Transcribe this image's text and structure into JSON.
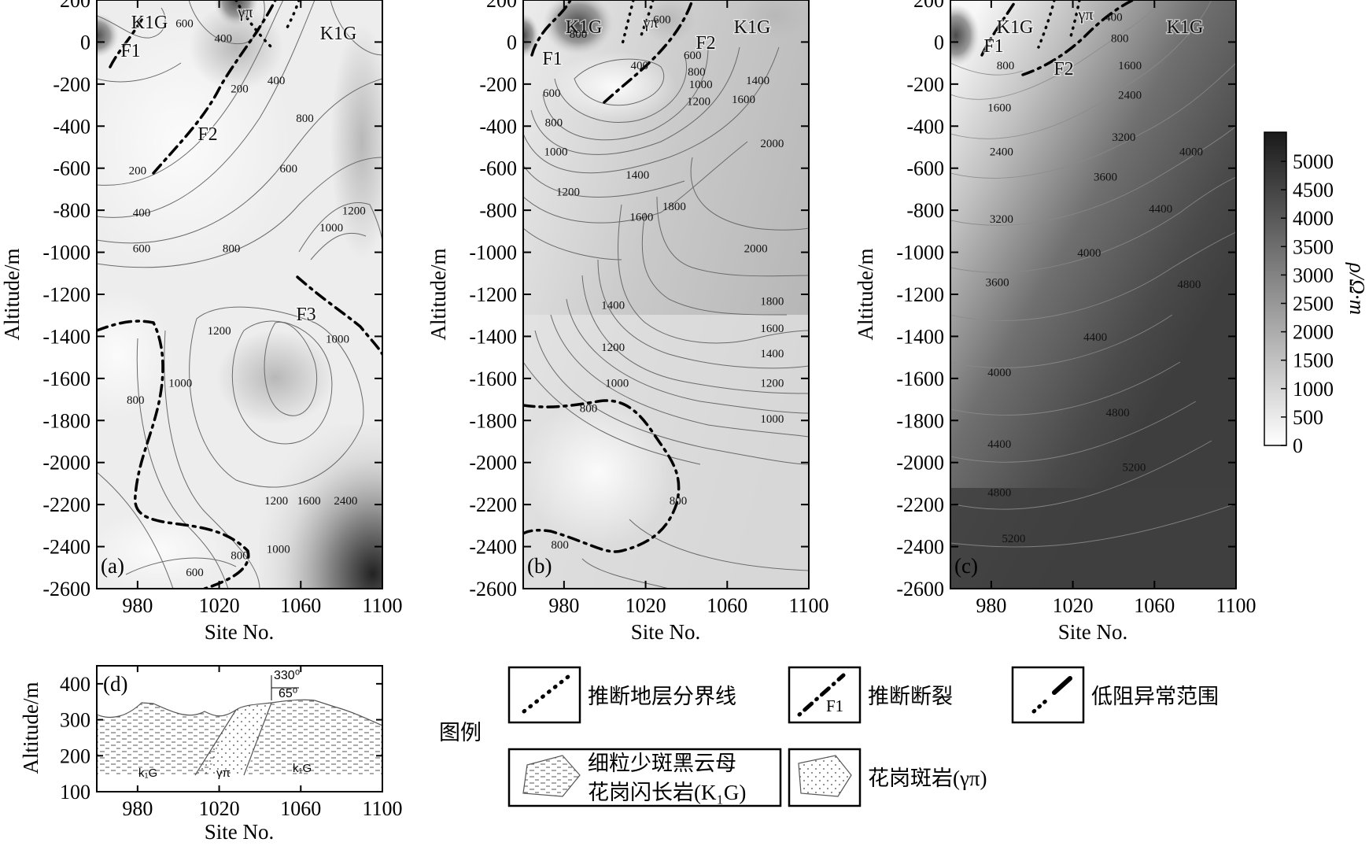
{
  "colorbar": {
    "label": "ρ/Ω·m",
    "ticks": [
      0,
      500,
      1000,
      1500,
      2000,
      2500,
      3000,
      3500,
      4000,
      4500,
      5000
    ]
  },
  "chart_data": [
    {
      "type": "contour",
      "panel_label": "(a)",
      "xlabel": "Site No.",
      "ylabel": "Altitude/m",
      "xlim": [
        960,
        1100
      ],
      "ylim": [
        -2600,
        200
      ],
      "xticks": [
        980,
        1020,
        1060,
        1100
      ],
      "yticks": [
        200,
        0,
        -200,
        -400,
        -600,
        -800,
        -1000,
        -1200,
        -1400,
        -1600,
        -1800,
        -2000,
        -2200,
        -2400,
        -2600
      ],
      "annotations": [
        "K1G",
        "K1G",
        "γπ",
        "F1",
        "F2",
        "F3"
      ],
      "contour_labels": [
        {
          "x": 1003,
          "y": 70,
          "text": "600"
        },
        {
          "x": 1022,
          "y": 0,
          "text": "400"
        },
        {
          "x": 1030,
          "y": -240,
          "text": "200"
        },
        {
          "x": 1048,
          "y": -200,
          "text": "400"
        },
        {
          "x": 1062,
          "y": -380,
          "text": "800"
        },
        {
          "x": 1054,
          "y": -620,
          "text": "600"
        },
        {
          "x": 980,
          "y": -630,
          "text": "200"
        },
        {
          "x": 982,
          "y": -830,
          "text": "400"
        },
        {
          "x": 982,
          "y": -1000,
          "text": "600"
        },
        {
          "x": 1026,
          "y": -1000,
          "text": "800"
        },
        {
          "x": 1075,
          "y": -900,
          "text": "1000"
        },
        {
          "x": 1086,
          "y": -820,
          "text": "1200"
        },
        {
          "x": 1020,
          "y": -1390,
          "text": "1200"
        },
        {
          "x": 1078,
          "y": -1430,
          "text": "1000"
        },
        {
          "x": 979,
          "y": -1720,
          "text": "800"
        },
        {
          "x": 1001,
          "y": -1640,
          "text": "1000"
        },
        {
          "x": 1048,
          "y": -2200,
          "text": "1200"
        },
        {
          "x": 1064,
          "y": -2200,
          "text": "1600"
        },
        {
          "x": 1082,
          "y": -2200,
          "text": "2400"
        },
        {
          "x": 1049,
          "y": -2430,
          "text": "1000"
        },
        {
          "x": 1030,
          "y": -2460,
          "text": "800"
        },
        {
          "x": 1008,
          "y": -2540,
          "text": "600"
        }
      ]
    },
    {
      "type": "contour",
      "panel_label": "(b)",
      "xlabel": "Site No.",
      "ylabel": "Altitude/m",
      "xlim": [
        960,
        1100
      ],
      "ylim": [
        -2600,
        200
      ],
      "xticks": [
        980,
        1020,
        1060,
        1100
      ],
      "yticks": [
        200,
        0,
        -200,
        -400,
        -600,
        -800,
        -1000,
        -1200,
        -1400,
        -1600,
        -1800,
        -2000,
        -2200,
        -2400,
        -2600
      ],
      "annotations": [
        "K1G",
        "γπ",
        "K1G",
        "F1",
        "F2"
      ],
      "contour_labels": [
        {
          "x": 1028,
          "y": 90,
          "text": "600"
        },
        {
          "x": 987,
          "y": 20,
          "text": "800"
        },
        {
          "x": 1017,
          "y": -130,
          "text": "400"
        },
        {
          "x": 1043,
          "y": -80,
          "text": "600"
        },
        {
          "x": 1045,
          "y": -160,
          "text": "800"
        },
        {
          "x": 1047,
          "y": -220,
          "text": "1000"
        },
        {
          "x": 1046,
          "y": -300,
          "text": "1200"
        },
        {
          "x": 1075,
          "y": -200,
          "text": "1400"
        },
        {
          "x": 1068,
          "y": -290,
          "text": "1600"
        },
        {
          "x": 1082,
          "y": -500,
          "text": "2000"
        },
        {
          "x": 974,
          "y": -260,
          "text": "600"
        },
        {
          "x": 975,
          "y": -400,
          "text": "800"
        },
        {
          "x": 976,
          "y": -540,
          "text": "1000"
        },
        {
          "x": 982,
          "y": -730,
          "text": "1200"
        },
        {
          "x": 1016,
          "y": -650,
          "text": "1400"
        },
        {
          "x": 1018,
          "y": -850,
          "text": "1600"
        },
        {
          "x": 1034,
          "y": -800,
          "text": "1800"
        },
        {
          "x": 1074,
          "y": -1000,
          "text": "2000"
        },
        {
          "x": 1004,
          "y": -1270,
          "text": "1400"
        },
        {
          "x": 1004,
          "y": -1470,
          "text": "1200"
        },
        {
          "x": 1006,
          "y": -1640,
          "text": "1000"
        },
        {
          "x": 1082,
          "y": -1250,
          "text": "1800"
        },
        {
          "x": 1082,
          "y": -1380,
          "text": "1600"
        },
        {
          "x": 1082,
          "y": -1500,
          "text": "1400"
        },
        {
          "x": 1082,
          "y": -1640,
          "text": "1200"
        },
        {
          "x": 1082,
          "y": -1810,
          "text": "1000"
        },
        {
          "x": 992,
          "y": -1760,
          "text": "800"
        },
        {
          "x": 1036,
          "y": -2200,
          "text": "800"
        },
        {
          "x": 978,
          "y": -2410,
          "text": "800"
        }
      ]
    },
    {
      "type": "contour",
      "panel_label": "(c)",
      "xlabel": "Site No.",
      "ylabel": "Altitude/m",
      "xlim": [
        960,
        1100
      ],
      "ylim": [
        -2600,
        200
      ],
      "xticks": [
        980,
        1020,
        1060,
        1100
      ],
      "yticks": [
        200,
        0,
        -200,
        -400,
        -600,
        -800,
        -1000,
        -1200,
        -1400,
        -1600,
        -1800,
        -2000,
        -2200,
        -2400,
        -2600
      ],
      "annotations": [
        "K1G",
        "γπ",
        "K1G",
        "F1",
        "F2"
      ],
      "contour_labels": [
        {
          "x": 1040,
          "y": 100,
          "text": "400"
        },
        {
          "x": 1043,
          "y": 0,
          "text": "800"
        },
        {
          "x": 987,
          "y": -130,
          "text": "800"
        },
        {
          "x": 1048,
          "y": -130,
          "text": "1600"
        },
        {
          "x": 1048,
          "y": -270,
          "text": "2400"
        },
        {
          "x": 984,
          "y": -330,
          "text": "1600"
        },
        {
          "x": 985,
          "y": -540,
          "text": "2400"
        },
        {
          "x": 1045,
          "y": -470,
          "text": "3200"
        },
        {
          "x": 1036,
          "y": -660,
          "text": "3600"
        },
        {
          "x": 1078,
          "y": -540,
          "text": "4000"
        },
        {
          "x": 985,
          "y": -860,
          "text": "3200"
        },
        {
          "x": 1063,
          "y": -810,
          "text": "4400"
        },
        {
          "x": 983,
          "y": -1160,
          "text": "3600"
        },
        {
          "x": 1028,
          "y": -1020,
          "text": "4000"
        },
        {
          "x": 1077,
          "y": -1170,
          "text": "4800"
        },
        {
          "x": 984,
          "y": -1590,
          "text": "4000"
        },
        {
          "x": 1031,
          "y": -1420,
          "text": "4400"
        },
        {
          "x": 1042,
          "y": -1780,
          "text": "4800"
        },
        {
          "x": 984,
          "y": -1930,
          "text": "4400"
        },
        {
          "x": 1050,
          "y": -2040,
          "text": "5200"
        },
        {
          "x": 984,
          "y": -2160,
          "text": "4800"
        },
        {
          "x": 991,
          "y": -2380,
          "text": "5200"
        }
      ]
    },
    {
      "type": "section",
      "panel_label": "(d)",
      "xlabel": "Site No.",
      "ylabel": "Altitude/m",
      "xlim": [
        960,
        1100
      ],
      "ylim": [
        100,
        450
      ],
      "xticks": [
        980,
        1020,
        1060,
        1100
      ],
      "yticks": [
        400,
        300,
        200,
        100
      ],
      "annotations": [
        "330⁰",
        "65⁰",
        "k₁G",
        "γπ",
        "k₁G"
      ]
    }
  ],
  "legend": {
    "title": "图例",
    "items": [
      {
        "symbol": "dotted-line",
        "label": "推断地层分界线"
      },
      {
        "symbol": "dash-dot-line",
        "symbol_text": "F1",
        "label": "推断断裂"
      },
      {
        "symbol": "dash-dot-bold-line",
        "label": "低阻异常范围"
      },
      {
        "symbol": "dashed-hatch",
        "label_lines": [
          "细粒少斑黑云母",
          "花岗闪长岩(K₁G)"
        ]
      },
      {
        "symbol": "dotted-hatch",
        "label": "花岗斑岩(γπ)"
      }
    ]
  }
}
